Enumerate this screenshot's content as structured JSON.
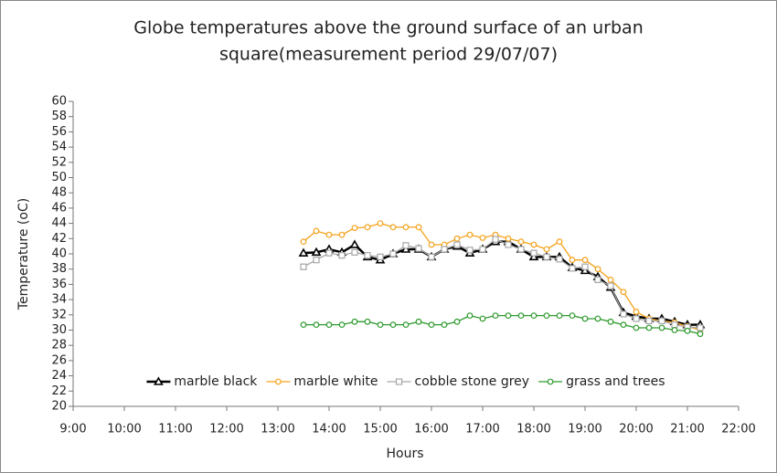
{
  "chart_data": {
    "type": "line",
    "title": [
      "Globe temperatures above the ground surface of an urban",
      "square(measurement period 29/07/07)"
    ],
    "x_label": "Hours",
    "y_label": "Temperature (oC)",
    "x": [
      13.5,
      13.75,
      14,
      14.25,
      14.5,
      14.75,
      15,
      15.25,
      15.5,
      15.75,
      16,
      16.25,
      16.5,
      16.75,
      17,
      17.25,
      17.5,
      17.75,
      18,
      18.25,
      18.5,
      18.75,
      19,
      19.25,
      19.5,
      19.75,
      20,
      20.25,
      20.5,
      20.75,
      21,
      21.25
    ],
    "series": [
      {
        "name": "marble black",
        "color": "#000000",
        "marker": "triangle",
        "width": 2.5,
        "values": [
          40.1,
          40.2,
          40.6,
          40.2,
          41.2,
          39.6,
          39.2,
          40,
          40.6,
          40.6,
          39.6,
          40.6,
          41,
          40.1,
          40.6,
          41.6,
          41.6,
          40.6,
          39.6,
          39.6,
          39.6,
          38.2,
          37.8,
          37,
          35.6,
          32.3,
          31.8,
          31.5,
          31.5,
          31.1,
          30.7,
          30.7
        ]
      },
      {
        "name": "marble white",
        "color": "#f5a21b",
        "marker": "circle",
        "width": 1.3,
        "values": [
          41.6,
          43,
          42.5,
          42.5,
          43.4,
          43.5,
          44,
          43.5,
          43.5,
          43.5,
          41.2,
          41.2,
          42,
          42.5,
          42.1,
          42.5,
          42,
          41.6,
          41.2,
          40.6,
          41.6,
          39.2,
          39.2,
          38,
          36.6,
          35,
          32.4,
          31.5,
          31.2,
          31,
          30.5,
          30
        ]
      },
      {
        "name": "cobble stone grey",
        "color": "#a6a6a6",
        "marker": "square",
        "width": 1.3,
        "values": [
          38.3,
          39.2,
          40.1,
          39.8,
          40.2,
          39.8,
          39.6,
          40,
          41.1,
          40.7,
          39.6,
          40.6,
          41.2,
          40.5,
          40.6,
          41.9,
          41.2,
          40.6,
          40.1,
          39.6,
          39.3,
          38.1,
          38.3,
          36.6,
          35.8,
          32.1,
          31.5,
          31.2,
          31.2,
          30.7,
          30.4,
          30.3
        ]
      },
      {
        "name": "grass and trees",
        "color": "#2e9a2e",
        "marker": "circle",
        "width": 1.3,
        "values": [
          30.7,
          30.7,
          30.7,
          30.7,
          31.1,
          31.1,
          30.7,
          30.7,
          30.7,
          31.1,
          30.7,
          30.7,
          31.1,
          31.9,
          31.5,
          31.9,
          31.9,
          31.9,
          31.9,
          31.9,
          31.9,
          31.9,
          31.5,
          31.5,
          31.1,
          30.7,
          30.3,
          30.3,
          30.3,
          30,
          29.9,
          29.5
        ]
      }
    ],
    "xlim": [
      9,
      22
    ],
    "xticks": [
      {
        "value": 9,
        "label": "9:00"
      },
      {
        "value": 10,
        "label": "10:00"
      },
      {
        "value": 11,
        "label": "11:00"
      },
      {
        "value": 12,
        "label": "12:00"
      },
      {
        "value": 13,
        "label": "13:00"
      },
      {
        "value": 14,
        "label": "14:00"
      },
      {
        "value": 15,
        "label": "15:00"
      },
      {
        "value": 16,
        "label": "16:00"
      },
      {
        "value": 17,
        "label": "17:00"
      },
      {
        "value": 18,
        "label": "18:00"
      },
      {
        "value": 19,
        "label": "19:00"
      },
      {
        "value": 20,
        "label": "20:00"
      },
      {
        "value": 21,
        "label": "21:00"
      },
      {
        "value": 22,
        "label": "22:00"
      }
    ],
    "ylim": [
      20,
      60
    ],
    "yticks": [
      20,
      22,
      24,
      26,
      28,
      30,
      32,
      34,
      36,
      38,
      40,
      42,
      44,
      46,
      48,
      50,
      52,
      54,
      56,
      58,
      60
    ],
    "grid": false,
    "legend": "bottom"
  }
}
